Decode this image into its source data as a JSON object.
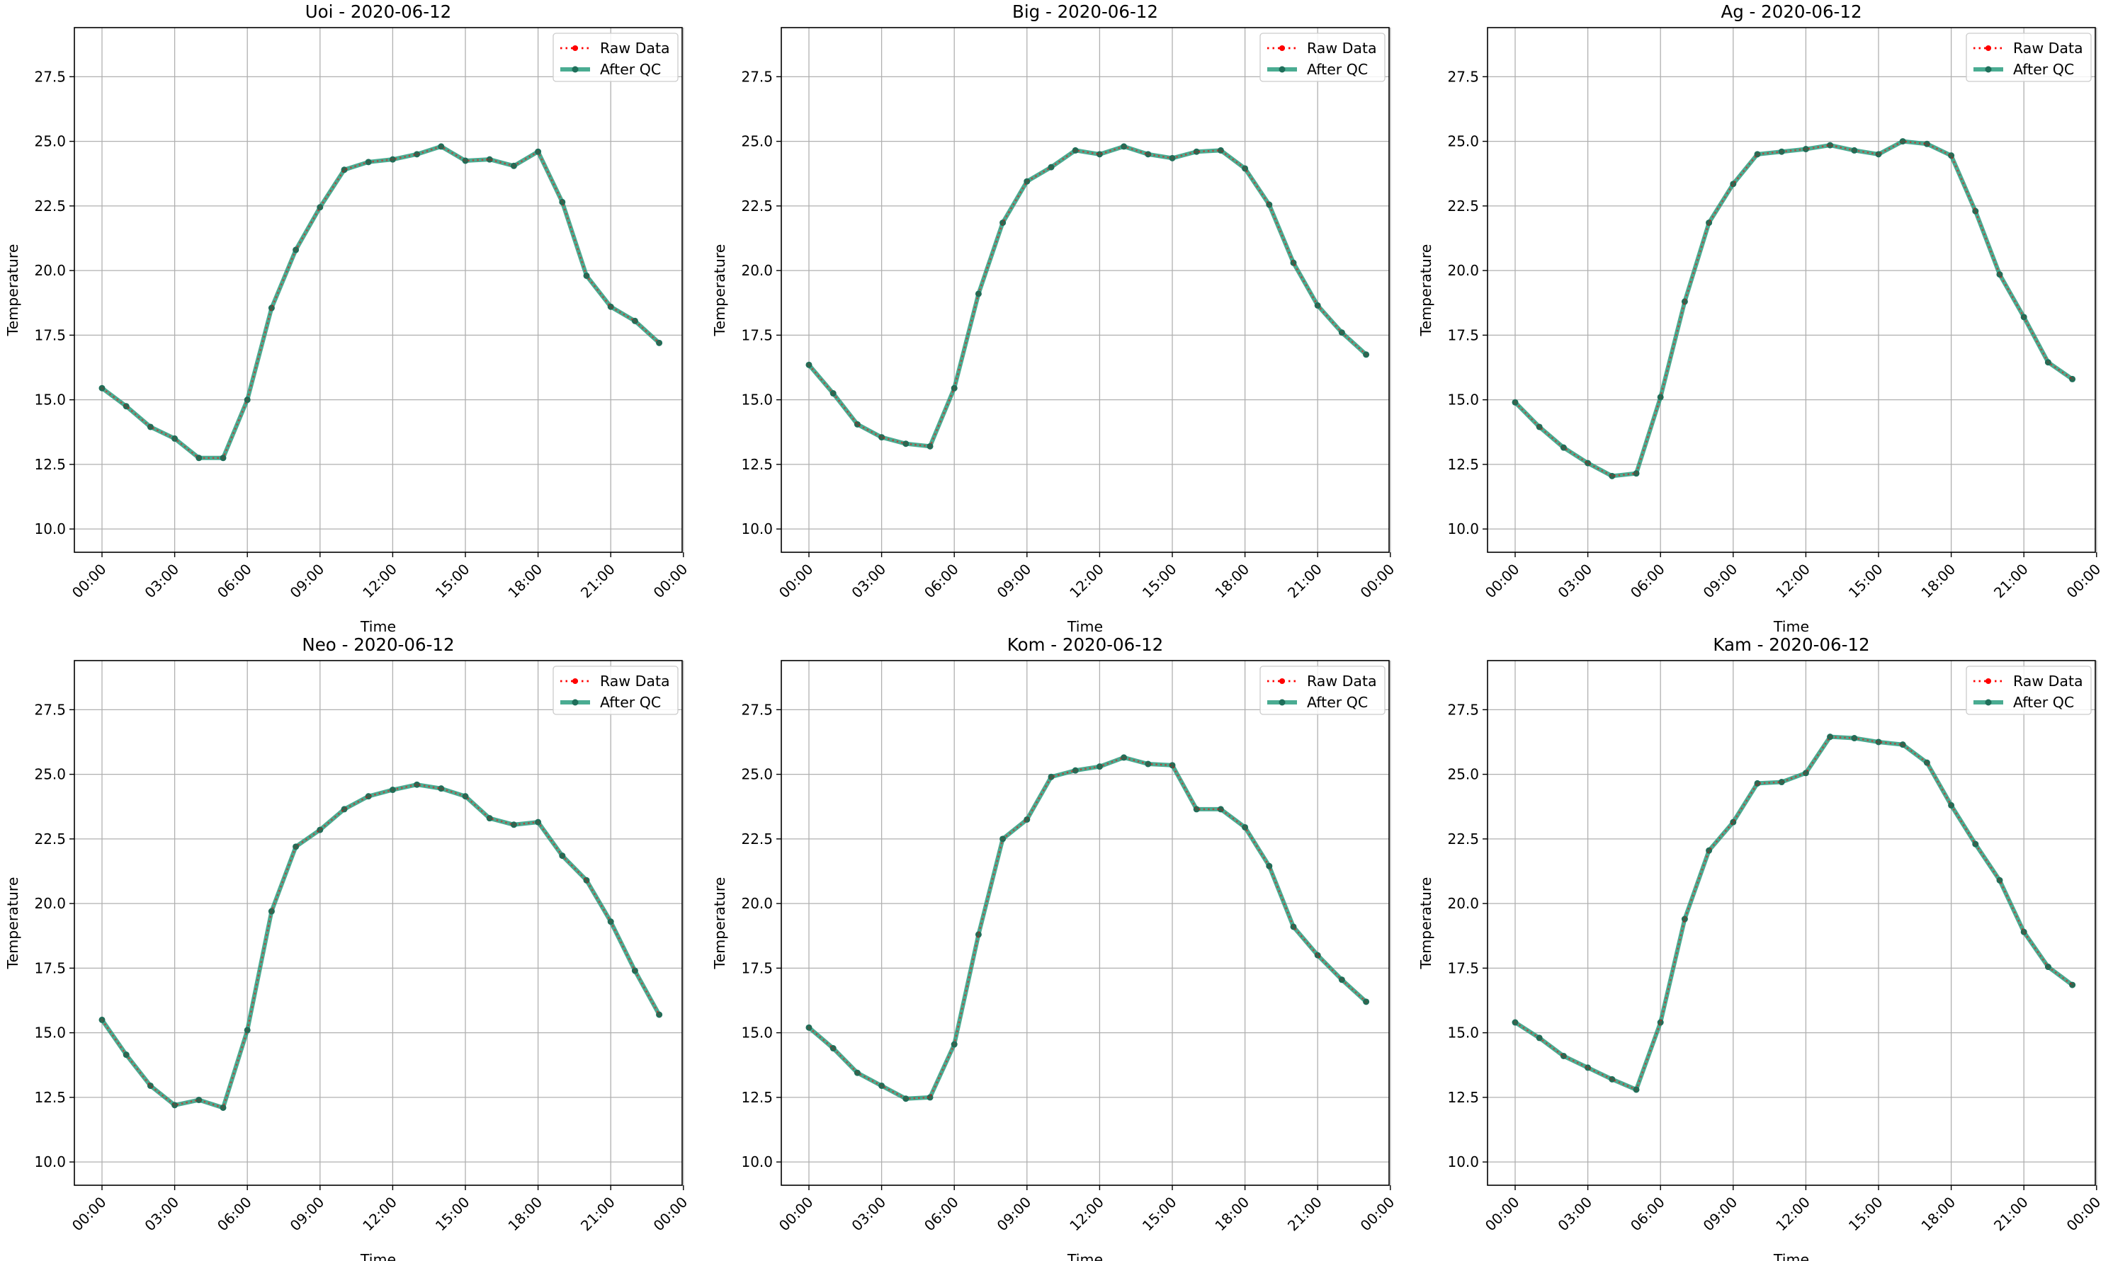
{
  "figure": {
    "xlabel": "Time",
    "ylabel": "Temperature",
    "xticks": [
      "00:00",
      "03:00",
      "06:00",
      "09:00",
      "12:00",
      "15:00",
      "18:00",
      "21:00",
      "00:00"
    ],
    "yticks": [
      "10.0",
      "12.5",
      "15.0",
      "17.5",
      "20.0",
      "22.5",
      "25.0",
      "27.5"
    ],
    "legend": {
      "raw": "Raw Data",
      "qc": "After QC"
    }
  },
  "colors": {
    "raw": "#ff0000",
    "qc": "#2a9d7f",
    "marker": "#1f6f5a",
    "grid": "#b0b0b0"
  },
  "chart_data": [
    {
      "type": "line",
      "title": "Uoi - 2020-06-12",
      "xlabel": "Time",
      "ylabel": "Temperature",
      "ylim": [
        9.1,
        29.4
      ],
      "grid": true,
      "legend_position": "top-right",
      "x": [
        "00:00",
        "01:00",
        "02:00",
        "03:00",
        "04:00",
        "05:00",
        "06:00",
        "07:00",
        "08:00",
        "09:00",
        "10:00",
        "11:00",
        "12:00",
        "13:00",
        "14:00",
        "15:00",
        "16:00",
        "17:00",
        "18:00",
        "19:00",
        "20:00",
        "21:00",
        "22:00",
        "23:00"
      ],
      "series": [
        {
          "name": "Raw Data",
          "values": [
            15.45,
            14.75,
            13.95,
            13.5,
            12.75,
            12.75,
            15.0,
            18.55,
            20.8,
            22.45,
            23.9,
            24.2,
            24.3,
            24.5,
            24.8,
            24.25,
            24.3,
            24.05,
            24.6,
            22.65,
            19.8,
            18.6,
            18.05,
            17.2
          ]
        },
        {
          "name": "After QC",
          "values": [
            15.45,
            14.75,
            13.95,
            13.5,
            12.75,
            12.75,
            15.0,
            18.55,
            20.8,
            22.45,
            23.9,
            24.2,
            24.3,
            24.5,
            24.8,
            24.25,
            24.3,
            24.05,
            24.6,
            22.65,
            19.8,
            18.6,
            18.05,
            17.2
          ]
        }
      ]
    },
    {
      "type": "line",
      "title": "Big - 2020-06-12",
      "xlabel": "Time",
      "ylabel": "Temperature",
      "ylim": [
        9.1,
        29.4
      ],
      "grid": true,
      "legend_position": "top-right",
      "x": [
        "00:00",
        "01:00",
        "02:00",
        "03:00",
        "04:00",
        "05:00",
        "06:00",
        "07:00",
        "08:00",
        "09:00",
        "10:00",
        "11:00",
        "12:00",
        "13:00",
        "14:00",
        "15:00",
        "16:00",
        "17:00",
        "18:00",
        "19:00",
        "20:00",
        "21:00",
        "22:00",
        "23:00"
      ],
      "series": [
        {
          "name": "Raw Data",
          "values": [
            16.35,
            15.25,
            14.05,
            13.55,
            13.3,
            13.2,
            15.45,
            19.1,
            21.85,
            23.45,
            24.0,
            24.65,
            24.5,
            24.8,
            24.5,
            24.35,
            24.6,
            24.65,
            23.95,
            22.55,
            20.3,
            18.65,
            17.6,
            16.75
          ]
        },
        {
          "name": "After QC",
          "values": [
            16.35,
            15.25,
            14.05,
            13.55,
            13.3,
            13.2,
            15.45,
            19.1,
            21.85,
            23.45,
            24.0,
            24.65,
            24.5,
            24.8,
            24.5,
            24.35,
            24.6,
            24.65,
            23.95,
            22.55,
            20.3,
            18.65,
            17.6,
            16.75
          ]
        }
      ]
    },
    {
      "type": "line",
      "title": "Ag - 2020-06-12",
      "xlabel": "Time",
      "ylabel": "Temperature",
      "ylim": [
        9.1,
        29.4
      ],
      "grid": true,
      "legend_position": "top-right",
      "x": [
        "00:00",
        "01:00",
        "02:00",
        "03:00",
        "04:00",
        "05:00",
        "06:00",
        "07:00",
        "08:00",
        "09:00",
        "10:00",
        "11:00",
        "12:00",
        "13:00",
        "14:00",
        "15:00",
        "16:00",
        "17:00",
        "18:00",
        "19:00",
        "20:00",
        "21:00",
        "22:00",
        "23:00"
      ],
      "series": [
        {
          "name": "Raw Data",
          "values": [
            14.9,
            13.95,
            13.15,
            12.55,
            12.05,
            12.15,
            15.1,
            18.8,
            21.85,
            23.35,
            24.5,
            24.6,
            24.7,
            24.85,
            24.65,
            24.5,
            25.0,
            24.9,
            24.45,
            22.3,
            19.85,
            18.2,
            16.45,
            15.8
          ]
        },
        {
          "name": "After QC",
          "values": [
            14.9,
            13.95,
            13.15,
            12.55,
            12.05,
            12.15,
            15.1,
            18.8,
            21.85,
            23.35,
            24.5,
            24.6,
            24.7,
            24.85,
            24.65,
            24.5,
            25.0,
            24.9,
            24.45,
            22.3,
            19.85,
            18.2,
            16.45,
            15.8
          ]
        }
      ]
    },
    {
      "type": "line",
      "title": "Neo - 2020-06-12",
      "xlabel": "Time",
      "ylabel": "Temperature",
      "ylim": [
        9.1,
        29.4
      ],
      "grid": true,
      "legend_position": "top-right",
      "x": [
        "00:00",
        "01:00",
        "02:00",
        "03:00",
        "04:00",
        "05:00",
        "06:00",
        "07:00",
        "08:00",
        "09:00",
        "10:00",
        "11:00",
        "12:00",
        "13:00",
        "14:00",
        "15:00",
        "16:00",
        "17:00",
        "18:00",
        "19:00",
        "20:00",
        "21:00",
        "22:00",
        "23:00"
      ],
      "series": [
        {
          "name": "Raw Data",
          "values": [
            15.5,
            14.15,
            12.95,
            12.2,
            12.4,
            12.1,
            15.1,
            19.7,
            22.2,
            22.85,
            23.65,
            24.15,
            24.4,
            24.6,
            24.45,
            24.15,
            23.3,
            23.05,
            23.15,
            21.85,
            20.9,
            19.3,
            17.4,
            15.7
          ]
        },
        {
          "name": "After QC",
          "values": [
            15.5,
            14.15,
            12.95,
            12.2,
            12.4,
            12.1,
            15.1,
            19.7,
            22.2,
            22.85,
            23.65,
            24.15,
            24.4,
            24.6,
            24.45,
            24.15,
            23.3,
            23.05,
            23.15,
            21.85,
            20.9,
            19.3,
            17.4,
            15.7
          ]
        }
      ]
    },
    {
      "type": "line",
      "title": "Kom - 2020-06-12",
      "xlabel": "Time",
      "ylabel": "Temperature",
      "ylim": [
        9.1,
        29.4
      ],
      "grid": true,
      "legend_position": "top-right",
      "x": [
        "00:00",
        "01:00",
        "02:00",
        "03:00",
        "04:00",
        "05:00",
        "06:00",
        "07:00",
        "08:00",
        "09:00",
        "10:00",
        "11:00",
        "12:00",
        "13:00",
        "14:00",
        "15:00",
        "16:00",
        "17:00",
        "18:00",
        "19:00",
        "20:00",
        "21:00",
        "22:00",
        "23:00"
      ],
      "series": [
        {
          "name": "Raw Data",
          "values": [
            15.2,
            14.4,
            13.45,
            12.95,
            12.45,
            12.5,
            14.55,
            18.8,
            22.5,
            23.25,
            24.9,
            25.15,
            25.3,
            25.65,
            25.4,
            25.35,
            23.65,
            23.65,
            22.95,
            21.45,
            19.1,
            18.0,
            17.05,
            16.2
          ]
        },
        {
          "name": "After QC",
          "values": [
            15.2,
            14.4,
            13.45,
            12.95,
            12.45,
            12.5,
            14.55,
            18.8,
            22.5,
            23.25,
            24.9,
            25.15,
            25.3,
            25.65,
            25.4,
            25.35,
            23.65,
            23.65,
            22.95,
            21.45,
            19.1,
            18.0,
            17.05,
            16.2
          ]
        }
      ]
    },
    {
      "type": "line",
      "title": "Kam - 2020-06-12",
      "xlabel": "Time",
      "ylabel": "Temperature",
      "ylim": [
        9.1,
        29.4
      ],
      "grid": true,
      "legend_position": "top-right",
      "x": [
        "00:00",
        "01:00",
        "02:00",
        "03:00",
        "04:00",
        "05:00",
        "06:00",
        "07:00",
        "08:00",
        "09:00",
        "10:00",
        "11:00",
        "12:00",
        "13:00",
        "14:00",
        "15:00",
        "16:00",
        "17:00",
        "18:00",
        "19:00",
        "20:00",
        "21:00",
        "22:00",
        "23:00"
      ],
      "series": [
        {
          "name": "Raw Data",
          "values": [
            15.4,
            14.8,
            14.1,
            13.65,
            13.2,
            12.8,
            15.4,
            19.4,
            22.05,
            23.15,
            24.65,
            24.7,
            25.05,
            26.45,
            26.4,
            26.25,
            26.15,
            25.45,
            23.8,
            22.3,
            20.9,
            18.9,
            17.55,
            16.85
          ]
        },
        {
          "name": "After QC",
          "values": [
            15.4,
            14.8,
            14.1,
            13.65,
            13.2,
            12.8,
            15.4,
            19.4,
            22.05,
            23.15,
            24.65,
            24.7,
            25.05,
            26.45,
            26.4,
            26.25,
            26.15,
            25.45,
            23.8,
            22.3,
            20.9,
            18.9,
            17.55,
            16.85
          ]
        }
      ]
    }
  ]
}
